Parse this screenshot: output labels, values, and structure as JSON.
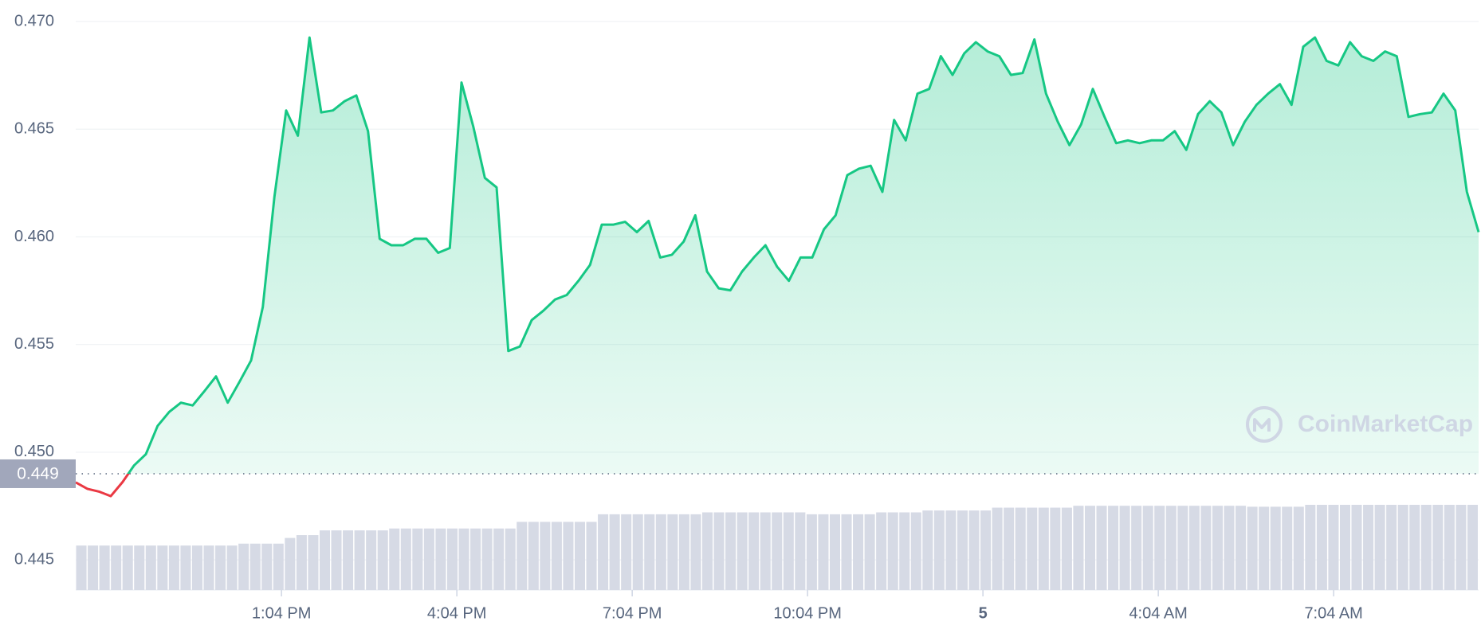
{
  "chart_data": {
    "type": "line",
    "color": "#16c784",
    "down_color": "#ea3943",
    "reference_value": 0.449,
    "watermark": "CoinMarketCap",
    "grid": true,
    "ylim": [
      0.4436,
      0.471
    ],
    "yticks": [
      0.445,
      {
        "value": 0.45,
        "label": "0.450"
      },
      0.455,
      {
        "value": 0.46,
        "label": "0.460"
      },
      0.465,
      {
        "value": 0.47,
        "label": "0.470"
      }
    ],
    "xlim": [
      0,
      120
    ],
    "xticks": [
      {
        "value": 17.6,
        "label": "1:04 PM"
      },
      {
        "value": 32.6,
        "label": "4:04 PM"
      },
      {
        "value": 47.6,
        "label": "7:04 PM"
      },
      {
        "value": 62.6,
        "label": "10:04 PM"
      },
      {
        "value": 77.6,
        "label": "5"
      },
      {
        "value": 92.6,
        "label": "4:04 AM"
      },
      {
        "value": 107.6,
        "label": "7:04 AM"
      }
    ],
    "values": [
      0.4486,
      0.4483,
      0.44817,
      0.44796,
      0.44861,
      0.44939,
      0.44991,
      0.45122,
      0.45187,
      0.4523,
      0.45217,
      0.45283,
      0.45352,
      0.4523,
      0.45326,
      0.45426,
      0.45674,
      0.46187,
      0.46587,
      0.4647,
      0.46926,
      0.46578,
      0.46587,
      0.4663,
      0.46657,
      0.46491,
      0.45991,
      0.45961,
      0.45961,
      0.45991,
      0.45991,
      0.45926,
      0.45948,
      0.46717,
      0.46513,
      0.46274,
      0.4623,
      0.4547,
      0.45491,
      0.45613,
      0.45657,
      0.45709,
      0.4573,
      0.45796,
      0.4587,
      0.46057,
      0.46057,
      0.4607,
      0.46022,
      0.46074,
      0.45904,
      0.45917,
      0.45978,
      0.461,
      0.45839,
      0.45761,
      0.45752,
      0.45839,
      0.45904,
      0.45961,
      0.45861,
      0.45796,
      0.45904,
      0.45904,
      0.46035,
      0.461,
      0.46287,
      0.46317,
      0.4633,
      0.46209,
      0.46543,
      0.46448,
      0.46665,
      0.46687,
      0.46839,
      0.46752,
      0.46852,
      0.46904,
      0.46861,
      0.46839,
      0.46752,
      0.46761,
      0.46917,
      0.46665,
      0.46535,
      0.46426,
      0.46522,
      0.46687,
      0.46557,
      0.46435,
      0.46448,
      0.46435,
      0.46448,
      0.46448,
      0.46491,
      0.46404,
      0.4657,
      0.4663,
      0.46578,
      0.46426,
      0.46535,
      0.46613,
      0.46665,
      0.46709,
      0.46613,
      0.46883,
      0.46926,
      0.46817,
      0.46796,
      0.46904,
      0.46839,
      0.46817,
      0.46861,
      0.46839,
      0.46557,
      0.4657,
      0.46578,
      0.46665,
      0.46587,
      0.46209,
      0.46022
    ],
    "volume": [
      47,
      47,
      47,
      47,
      47,
      47,
      47,
      47,
      47,
      47,
      47,
      47,
      47,
      47,
      49,
      49,
      49,
      49,
      55,
      58,
      58,
      63,
      63,
      63,
      63,
      63,
      63,
      65,
      65,
      65,
      65,
      65,
      65,
      65,
      65,
      65,
      65,
      65,
      72,
      72,
      72,
      72,
      72,
      72,
      72,
      80,
      80,
      80,
      80,
      80,
      80,
      80,
      80,
      80,
      82,
      82,
      82,
      82,
      82,
      82,
      82,
      82,
      82,
      80,
      80,
      80,
      80,
      80,
      80,
      82,
      82,
      82,
      82,
      84,
      84,
      84,
      84,
      84,
      84,
      87,
      87,
      87,
      87,
      87,
      87,
      87,
      89,
      89,
      89,
      89,
      89,
      89,
      89,
      89,
      89,
      89,
      89,
      89,
      89,
      89,
      89,
      88,
      88,
      88,
      88,
      88,
      90,
      90,
      90,
      90,
      90,
      90,
      90,
      90,
      90,
      90,
      90,
      90,
      90,
      90,
      90
    ],
    "volume_color": "#d6dae5"
  }
}
